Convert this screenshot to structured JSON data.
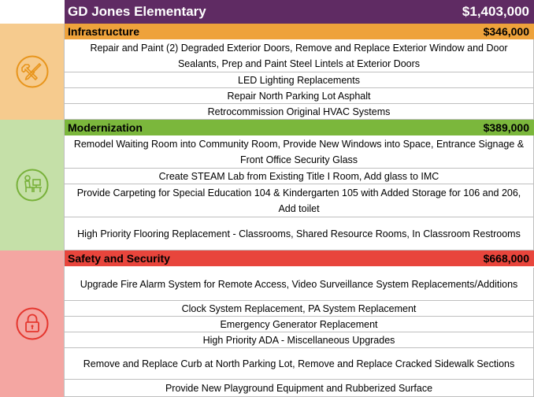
{
  "header": {
    "title": "GD Jones Elementary",
    "total": "$1,403,000"
  },
  "sections": [
    {
      "name": "Infrastructure",
      "amount": "$346,000",
      "icon": "tools-icon",
      "header_color": "#eea23b",
      "side_color": "#f6cb8e",
      "icon_color": "#e8951c",
      "items": [
        "Repair and Paint (2) Degraded Exterior Doors, Remove and Replace Exterior Window and Door Sealants, Prep and Paint Steel Lintels at Exterior Doors",
        "LED Lighting Replacements",
        "Repair North Parking Lot Asphalt",
        "Retrocommission Original HVAC Systems"
      ]
    },
    {
      "name": "Modernization",
      "amount": "$389,000",
      "icon": "student-at-computer-icon",
      "header_color": "#7bb73c",
      "side_color": "#c5e0a8",
      "icon_color": "#78b13a",
      "items": [
        "Remodel Waiting Room into Community Room, Provide New Windows into Space, Entrance Signage & Front Office Security Glass",
        "Create STEAM Lab from Existing Title I Room, Add glass to IMC",
        "Provide Carpeting for Special Education 104 & Kindergarten 105 with Added Storage for 106 and 206, Add toilet",
        "High Priority Flooring Replacement - Classrooms, Shared Resource Rooms, In Classroom Restrooms"
      ]
    },
    {
      "name": "Safety and Security",
      "amount": "$668,000",
      "icon": "padlock-icon",
      "header_color": "#e8453c",
      "side_color": "#f4a6a2",
      "icon_color": "#e5362e",
      "items": [
        "Upgrade Fire Alarm System for Remote Access, Video Surveillance System Replacements/Additions",
        "Clock System Replacement, PA System Replacement",
        "Emergency Generator Replacement",
        "High Priority ADA - Miscellaneous Upgrades",
        "Remove and Replace Curb at North Parking Lot, Remove and Replace Cracked Sidewalk Sections",
        "Provide New Playground Equipment and Rubberized Surface"
      ]
    }
  ]
}
